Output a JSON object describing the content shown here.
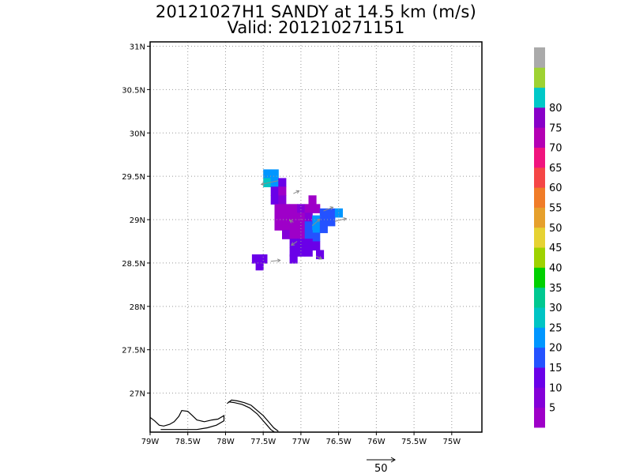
{
  "title": {
    "line1": "20121027H1 SANDY at 14.5 km (m/s)",
    "line2": "Valid: 201210271151"
  },
  "map": {
    "lon_range": [
      -79.0,
      -74.6
    ],
    "lat_range": [
      26.55,
      31.05
    ],
    "x_ticks": [
      {
        "v": -79.0,
        "label": "79W"
      },
      {
        "v": -78.5,
        "label": "78.5W"
      },
      {
        "v": -78.0,
        "label": "78W"
      },
      {
        "v": -77.5,
        "label": "77.5W"
      },
      {
        "v": -77.0,
        "label": "77W"
      },
      {
        "v": -76.5,
        "label": "76.5W"
      },
      {
        "v": -76.0,
        "label": "76W"
      },
      {
        "v": -75.5,
        "label": "75.5W"
      },
      {
        "v": -75.0,
        "label": "75W"
      }
    ],
    "y_ticks": [
      {
        "v": 27.0,
        "label": "27N"
      },
      {
        "v": 27.5,
        "label": "27.5N"
      },
      {
        "v": 28.0,
        "label": "28N"
      },
      {
        "v": 28.5,
        "label": "28.5N"
      },
      {
        "v": 29.0,
        "label": "29N"
      },
      {
        "v": 29.5,
        "label": "29.5N"
      },
      {
        "v": 30.0,
        "label": "30N"
      },
      {
        "v": 30.5,
        "label": "30.5N"
      },
      {
        "v": 31.0,
        "label": "31N"
      }
    ],
    "grid": "dotted",
    "coastline": [
      [
        [
          -79.0,
          26.72
        ],
        [
          -78.94,
          26.68
        ],
        [
          -78.88,
          26.63
        ],
        [
          -78.82,
          26.62
        ],
        [
          -78.74,
          26.64
        ],
        [
          -78.68,
          26.67
        ],
        [
          -78.62,
          26.73
        ],
        [
          -78.58,
          26.8
        ],
        [
          -78.5,
          26.79
        ],
        [
          -78.44,
          26.74
        ],
        [
          -78.38,
          26.69
        ],
        [
          -78.28,
          26.67
        ],
        [
          -78.18,
          26.69
        ],
        [
          -78.1,
          26.7
        ],
        [
          -78.02,
          26.74
        ],
        [
          -78.02,
          26.68
        ],
        [
          -78.12,
          26.63
        ],
        [
          -78.24,
          26.6
        ],
        [
          -78.38,
          26.58
        ],
        [
          -78.55,
          26.58
        ],
        [
          -78.72,
          26.58
        ],
        [
          -78.86,
          26.58
        ]
      ],
      [
        [
          -77.98,
          26.88
        ],
        [
          -77.92,
          26.92
        ],
        [
          -77.84,
          26.91
        ],
        [
          -77.75,
          26.89
        ],
        [
          -77.66,
          26.86
        ],
        [
          -77.58,
          26.8
        ],
        [
          -77.5,
          26.74
        ],
        [
          -77.42,
          26.66
        ],
        [
          -77.36,
          26.6
        ],
        [
          -77.3,
          26.56
        ]
      ],
      [
        [
          -77.96,
          26.9
        ],
        [
          -77.88,
          26.89
        ],
        [
          -77.78,
          26.87
        ],
        [
          -77.68,
          26.83
        ],
        [
          -77.58,
          26.76
        ],
        [
          -77.52,
          26.7
        ],
        [
          -77.45,
          26.63
        ],
        [
          -77.4,
          26.58
        ],
        [
          -77.35,
          26.55
        ]
      ]
    ],
    "wind_cells": [
      {
        "lon": -77.45,
        "lat": 29.53,
        "kt": 22
      },
      {
        "lon": -77.35,
        "lat": 29.53,
        "kt": 20
      },
      {
        "lon": -77.45,
        "lat": 29.43,
        "kt": 25
      },
      {
        "lon": -77.35,
        "lat": 29.43,
        "kt": 21
      },
      {
        "lon": -77.25,
        "lat": 29.43,
        "kt": 14
      },
      {
        "lon": -77.35,
        "lat": 29.33,
        "kt": 13
      },
      {
        "lon": -77.25,
        "lat": 29.33,
        "kt": 4
      },
      {
        "lon": -77.35,
        "lat": 29.23,
        "kt": 12
      },
      {
        "lon": -77.25,
        "lat": 29.23,
        "kt": 5
      },
      {
        "lon": -76.85,
        "lat": 29.23,
        "kt": 4
      },
      {
        "lon": -77.3,
        "lat": 29.13,
        "kt": 4
      },
      {
        "lon": -77.2,
        "lat": 29.13,
        "kt": 3
      },
      {
        "lon": -77.1,
        "lat": 29.13,
        "kt": 4
      },
      {
        "lon": -77.0,
        "lat": 29.13,
        "kt": 5
      },
      {
        "lon": -76.9,
        "lat": 29.13,
        "kt": 3
      },
      {
        "lon": -76.8,
        "lat": 29.13,
        "kt": 4
      },
      {
        "lon": -76.7,
        "lat": 29.08,
        "kt": 16
      },
      {
        "lon": -76.6,
        "lat": 29.08,
        "kt": 18
      },
      {
        "lon": -76.5,
        "lat": 29.08,
        "kt": 20
      },
      {
        "lon": -77.3,
        "lat": 29.03,
        "kt": 4
      },
      {
        "lon": -77.2,
        "lat": 29.03,
        "kt": 3
      },
      {
        "lon": -77.1,
        "lat": 29.03,
        "kt": 4
      },
      {
        "lon": -77.0,
        "lat": 29.03,
        "kt": 3
      },
      {
        "lon": -76.9,
        "lat": 29.03,
        "kt": 5
      },
      {
        "lon": -76.8,
        "lat": 29.0,
        "kt": 21
      },
      {
        "lon": -76.7,
        "lat": 28.98,
        "kt": 18
      },
      {
        "lon": -76.6,
        "lat": 28.98,
        "kt": 17
      },
      {
        "lon": -77.3,
        "lat": 28.93,
        "kt": 4
      },
      {
        "lon": -77.2,
        "lat": 28.93,
        "kt": 3
      },
      {
        "lon": -77.1,
        "lat": 28.93,
        "kt": 4
      },
      {
        "lon": -77.0,
        "lat": 28.93,
        "kt": 4
      },
      {
        "lon": -76.9,
        "lat": 28.93,
        "kt": 15
      },
      {
        "lon": -76.8,
        "lat": 28.9,
        "kt": 20
      },
      {
        "lon": -76.7,
        "lat": 28.9,
        "kt": 17
      },
      {
        "lon": -77.2,
        "lat": 28.83,
        "kt": 5
      },
      {
        "lon": -77.1,
        "lat": 28.83,
        "kt": 4
      },
      {
        "lon": -77.0,
        "lat": 28.83,
        "kt": 3
      },
      {
        "lon": -76.9,
        "lat": 28.83,
        "kt": 16
      },
      {
        "lon": -76.8,
        "lat": 28.8,
        "kt": 18
      },
      {
        "lon": -77.1,
        "lat": 28.73,
        "kt": 13
      },
      {
        "lon": -77.0,
        "lat": 28.73,
        "kt": 11
      },
      {
        "lon": -76.9,
        "lat": 28.73,
        "kt": 14
      },
      {
        "lon": -76.8,
        "lat": 28.7,
        "kt": 12
      },
      {
        "lon": -77.1,
        "lat": 28.63,
        "kt": 12
      },
      {
        "lon": -77.0,
        "lat": 28.63,
        "kt": 11
      },
      {
        "lon": -76.9,
        "lat": 28.63,
        "kt": 13
      },
      {
        "lon": -76.75,
        "lat": 28.6,
        "kt": 12
      },
      {
        "lon": -77.1,
        "lat": 28.55,
        "kt": 11
      },
      {
        "lon": -77.6,
        "lat": 28.55,
        "kt": 12
      },
      {
        "lon": -77.5,
        "lat": 28.55,
        "kt": 11
      },
      {
        "lon": -77.55,
        "lat": 28.47,
        "kt": 13
      }
    ],
    "vectors": [
      {
        "lon": -77.3,
        "lat": 29.45,
        "u": -18,
        "v": -4
      },
      {
        "lon": -77.1,
        "lat": 29.3,
        "u": 6,
        "v": 3
      },
      {
        "lon": -76.7,
        "lat": 29.1,
        "u": 10,
        "v": 4
      },
      {
        "lon": -77.1,
        "lat": 28.97,
        "u": -4,
        "v": 2
      },
      {
        "lon": -76.85,
        "lat": 28.93,
        "u": 8,
        "v": 7
      },
      {
        "lon": -76.55,
        "lat": 28.98,
        "u": 12,
        "v": 3
      },
      {
        "lon": -77.05,
        "lat": 28.75,
        "u": -6,
        "v": -4
      },
      {
        "lon": -76.8,
        "lat": 28.58,
        "u": 6,
        "v": -3
      },
      {
        "lon": -77.4,
        "lat": 28.52,
        "u": 10,
        "v": 1
      }
    ]
  },
  "colorbar": {
    "colors": [
      "#9e00c8",
      "#8400d8",
      "#6a00e8",
      "#2452ff",
      "#0096ff",
      "#00c4c4",
      "#00c890",
      "#00d000",
      "#9ed200",
      "#e6d233",
      "#e6a02c",
      "#f07c28",
      "#f54646",
      "#f0147e",
      "#b400b4",
      "#8800c8",
      "#00c8c8",
      "#9ed232",
      "#aaaaaa"
    ],
    "labels": [
      "5",
      "10",
      "15",
      "20",
      "25",
      "30",
      "35",
      "40",
      "45",
      "50",
      "55",
      "60",
      "65",
      "70",
      "75",
      "80"
    ]
  },
  "reference_vector": {
    "label": "50"
  }
}
